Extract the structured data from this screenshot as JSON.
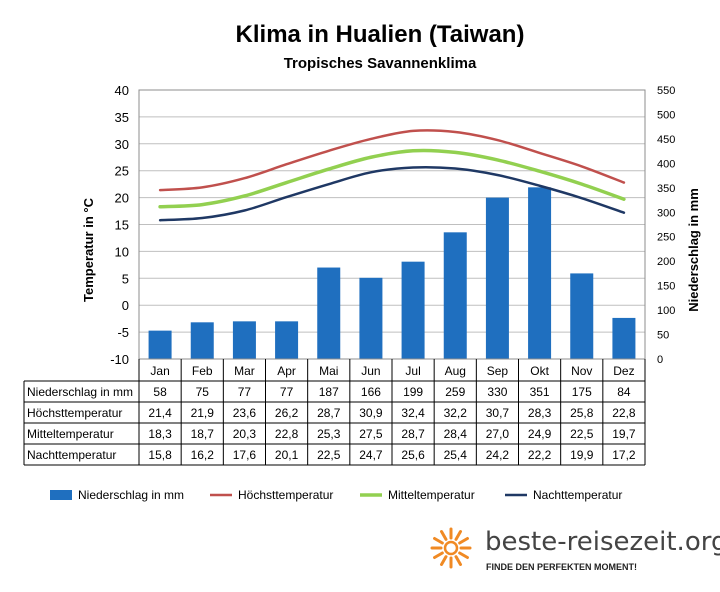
{
  "chart_data": {
    "type": "bar+line",
    "title": "Klima in Hualien (Taiwan)",
    "subtitle": "Tropisches  Savannenklima",
    "categories": [
      "Jan",
      "Feb",
      "Mar",
      "Apr",
      "Mai",
      "Jun",
      "Jul",
      "Aug",
      "Sep",
      "Okt",
      "Nov",
      "Dez"
    ],
    "y_left": {
      "label": "Temperatur in °C",
      "range": [
        -10,
        40
      ],
      "ticks": [
        "-10",
        "-5",
        "0",
        "5",
        "10",
        "15",
        "20",
        "25",
        "30",
        "35",
        "40"
      ]
    },
    "y_right": {
      "label": "Niederschlag in mm",
      "range": [
        0,
        550
      ],
      "ticks": [
        "0",
        "50",
        "100",
        "150",
        "200",
        "250",
        "300",
        "350",
        "400",
        "450",
        "500",
        "550"
      ]
    },
    "grid": true,
    "legend_position": "bottom",
    "series": [
      {
        "name": "Niederschlag in mm",
        "kind": "bar",
        "axis": "right",
        "color": "#1f6fbf",
        "values": [
          58,
          75,
          77,
          77,
          187,
          166,
          199,
          259,
          330,
          351,
          175,
          84
        ]
      },
      {
        "name": "Höchsttemperatur",
        "kind": "line",
        "axis": "left",
        "color": "#c0504d",
        "values": [
          21.4,
          21.9,
          23.6,
          26.2,
          28.7,
          30.9,
          32.4,
          32.2,
          30.7,
          28.3,
          25.8,
          22.8
        ]
      },
      {
        "name": "Mitteltemperatur",
        "kind": "line",
        "axis": "left",
        "color": "#92d050",
        "values": [
          18.3,
          18.7,
          20.3,
          22.8,
          25.3,
          27.5,
          28.7,
          28.4,
          27.0,
          24.9,
          22.5,
          19.7
        ]
      },
      {
        "name": "Nachttemperatur",
        "kind": "line",
        "axis": "left",
        "color": "#1f3864",
        "values": [
          15.8,
          16.2,
          17.6,
          20.1,
          22.5,
          24.7,
          25.6,
          25.4,
          24.2,
          22.2,
          19.9,
          17.2
        ]
      }
    ],
    "table": {
      "rows": [
        {
          "label": "Niederschlag in mm",
          "cells": [
            "58",
            "75",
            "77",
            "77",
            "187",
            "166",
            "199",
            "259",
            "330",
            "351",
            "175",
            "84"
          ]
        },
        {
          "label": "Höchsttemperatur",
          "cells": [
            "21,4",
            "21,9",
            "23,6",
            "26,2",
            "28,7",
            "30,9",
            "32,4",
            "32,2",
            "30,7",
            "28,3",
            "25,8",
            "22,8"
          ]
        },
        {
          "label": "Mitteltemperatur",
          "cells": [
            "18,3",
            "18,7",
            "20,3",
            "22,8",
            "25,3",
            "27,5",
            "28,7",
            "28,4",
            "27,0",
            "24,9",
            "22,5",
            "19,7"
          ]
        },
        {
          "label": "Nachttemperatur",
          "cells": [
            "15,8",
            "16,2",
            "17,6",
            "20,1",
            "22,5",
            "24,7",
            "25,6",
            "25,4",
            "24,2",
            "22,2",
            "19,9",
            "17,2"
          ]
        }
      ]
    }
  },
  "branding": {
    "site": "beste-reisezeit.org",
    "tagline": "FINDE DEN PERFEKTEN MOMENT!",
    "logo_color": "#f08a24"
  }
}
